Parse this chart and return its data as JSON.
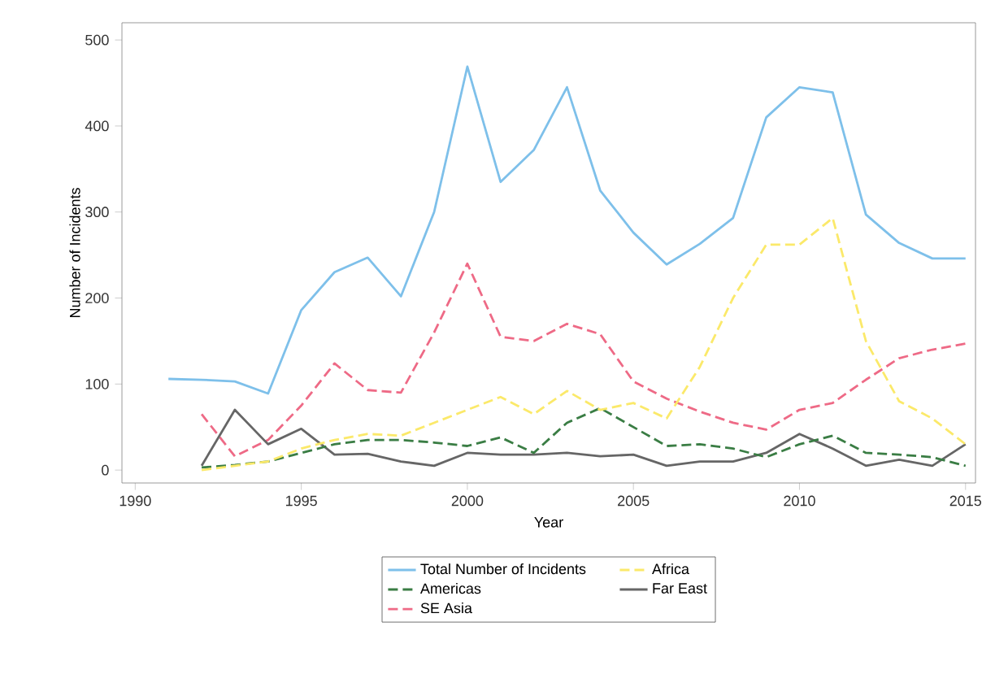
{
  "chart_data": {
    "type": "line",
    "xlabel": "Year",
    "ylabel": "Number of Incidents",
    "xlim": [
      1989.6,
      2015.3
    ],
    "ylim": [
      -15,
      520
    ],
    "xticks": [
      1990,
      1995,
      2000,
      2005,
      2010,
      2015
    ],
    "yticks": [
      0,
      100,
      200,
      300,
      400,
      500
    ],
    "legend": "bottom",
    "grid": false,
    "series": [
      {
        "name": "Total Number of Incidents",
        "color": "#7ec0ea",
        "line_style": "solid",
        "x": [
          1991,
          1992,
          1993,
          1994,
          1995,
          1996,
          1997,
          1998,
          1999,
          2000,
          2001,
          2002,
          2003,
          2004,
          2005,
          2006,
          2007,
          2008,
          2009,
          2010,
          2011,
          2012,
          2013,
          2014,
          2015
        ],
        "values": [
          106,
          105,
          103,
          89,
          186,
          230,
          247,
          202,
          300,
          469,
          335,
          372,
          445,
          325,
          276,
          239,
          263,
          293,
          410,
          445,
          439,
          297,
          264,
          246,
          246
        ]
      },
      {
        "name": "Africa",
        "color": "#fbe96a",
        "line_style": "dashed",
        "x": [
          1992,
          1993,
          1994,
          1995,
          1996,
          1997,
          1998,
          1999,
          2000,
          2001,
          2002,
          2003,
          2004,
          2005,
          2006,
          2007,
          2008,
          2009,
          2010,
          2011,
          2012,
          2013,
          2014,
          2015
        ],
        "values": [
          0,
          5,
          10,
          25,
          35,
          42,
          40,
          55,
          70,
          85,
          65,
          92,
          70,
          78,
          60,
          120,
          200,
          262,
          262,
          293,
          150,
          80,
          60,
          30
        ]
      },
      {
        "name": "Americas",
        "color": "#3a7d44",
        "line_style": "dashed",
        "x": [
          1992,
          1993,
          1994,
          1995,
          1996,
          1997,
          1998,
          1999,
          2000,
          2001,
          2002,
          2003,
          2004,
          2005,
          2006,
          2007,
          2008,
          2009,
          2010,
          2011,
          2012,
          2013,
          2014,
          2015
        ],
        "values": [
          3,
          6,
          10,
          20,
          30,
          35,
          35,
          32,
          28,
          38,
          20,
          55,
          72,
          50,
          28,
          30,
          25,
          15,
          30,
          40,
          20,
          18,
          15,
          5
        ]
      },
      {
        "name": "Far East",
        "color": "#666666",
        "line_style": "solid",
        "x": [
          1992,
          1993,
          1994,
          1995,
          1996,
          1997,
          1998,
          1999,
          2000,
          2001,
          2002,
          2003,
          2004,
          2005,
          2006,
          2007,
          2008,
          2009,
          2010,
          2011,
          2012,
          2013,
          2014,
          2015
        ],
        "values": [
          5,
          70,
          30,
          48,
          18,
          19,
          10,
          5,
          20,
          18,
          18,
          20,
          16,
          18,
          5,
          10,
          10,
          20,
          42,
          25,
          5,
          12,
          5,
          30
        ]
      },
      {
        "name": "SE Asia",
        "color": "#ee6a86",
        "line_style": "dashed",
        "x": [
          1992,
          1993,
          1994,
          1995,
          1996,
          1997,
          1998,
          1999,
          2000,
          2001,
          2002,
          2003,
          2004,
          2005,
          2006,
          2007,
          2008,
          2009,
          2010,
          2011,
          2012,
          2013,
          2014,
          2015
        ],
        "values": [
          65,
          16,
          35,
          75,
          124,
          93,
          90,
          160,
          240,
          155,
          150,
          170,
          158,
          103,
          83,
          68,
          55,
          47,
          70,
          78,
          105,
          130,
          140,
          147
        ]
      }
    ]
  }
}
